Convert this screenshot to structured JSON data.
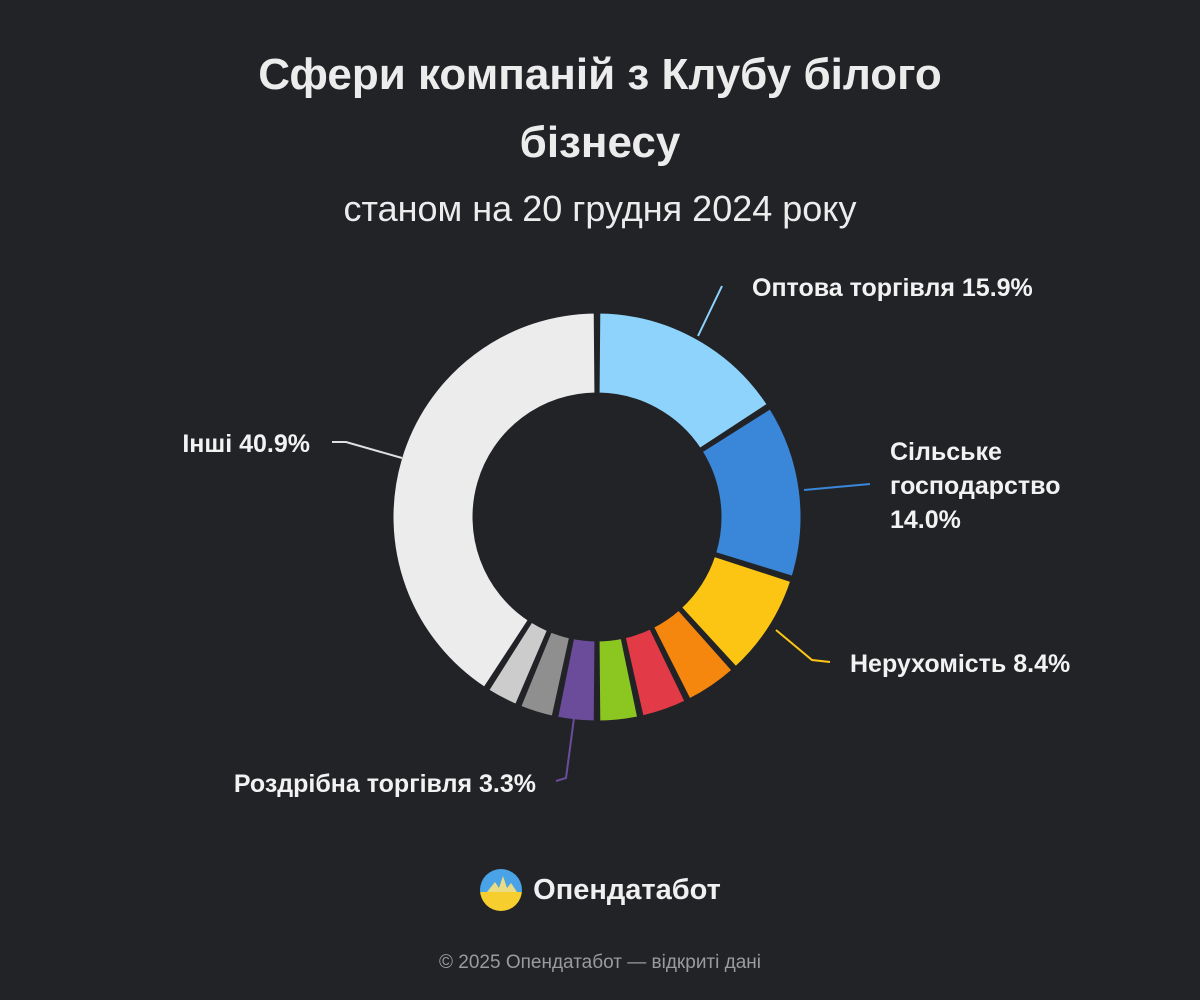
{
  "header": {
    "title_line1": "Сфери компаній з Клубу білого",
    "title_line2": "бізнесу",
    "subtitle": "станом на 20 грудня 2024 року"
  },
  "chart_data": {
    "type": "pie",
    "title": "Сфери компаній з Клубу білого бізнесу",
    "subtitle": "станом на 20 грудня 2024 року",
    "slices": [
      {
        "label": "Оптова торгівля",
        "value": 15.9,
        "color": "#8dd3fb",
        "display": [
          "Оптова торгівля 15.9%"
        ]
      },
      {
        "label": "Сільське господарство",
        "value": 14.0,
        "color": "#3a86d8",
        "display": [
          "Сільське",
          "господарство",
          "14.0%"
        ]
      },
      {
        "label": "Нерухомість",
        "value": 8.4,
        "color": "#fcc513",
        "display": [
          "Нерухомість 8.4%"
        ]
      },
      {
        "label": "",
        "value": 4.4,
        "color": "#f5870f",
        "display": []
      },
      {
        "label": "",
        "value": 3.9,
        "color": "#e23a46",
        "display": []
      },
      {
        "label": "",
        "value": 3.4,
        "color": "#8cc721",
        "display": []
      },
      {
        "label": "Роздрібна торгівля",
        "value": 3.3,
        "color": "#6b4c9a",
        "display": [
          "Роздрібна торгівля 3.3%"
        ]
      },
      {
        "label": "",
        "value": 3.0,
        "color": "#8f8f8f",
        "display": []
      },
      {
        "label": "",
        "value": 2.8,
        "color": "#cccccc",
        "display": []
      },
      {
        "label": "Інші",
        "value": 40.9,
        "color": "#ececec",
        "display": [
          "Інші 40.9%"
        ]
      }
    ]
  },
  "footer": {
    "brand": "Опендатабот",
    "logo_icon": "opendatabot-logo-icon",
    "copyright": "© 2025 Опендатабот — відкриті дані"
  }
}
